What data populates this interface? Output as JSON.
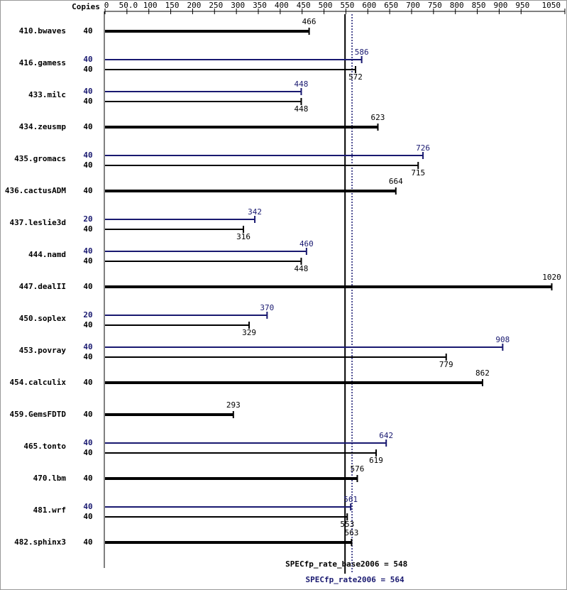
{
  "chart_data": {
    "type": "bar",
    "copies_header": "Copies",
    "categories": [
      "410.bwaves",
      "416.gamess",
      "433.milc",
      "434.zeusmp",
      "435.gromacs",
      "436.cactusADM",
      "437.leslie3d",
      "444.namd",
      "447.dealII",
      "450.soplex",
      "453.povray",
      "454.calculix",
      "459.GemsFDTD",
      "465.tonto",
      "470.lbm",
      "481.wrf",
      "482.sphinx3"
    ],
    "series": [
      {
        "color": "#000000",
        "copies": [
          40,
          40,
          40,
          40,
          40,
          40,
          40,
          40,
          40,
          40,
          40,
          40,
          40,
          40,
          40,
          40,
          40
        ],
        "values": [
          466,
          572,
          448,
          623,
          715,
          664,
          316,
          448,
          1020,
          329,
          779,
          862,
          293,
          619,
          576,
          553,
          563
        ]
      },
      {
        "color": "#191970",
        "copies": [
          null,
          40,
          40,
          null,
          40,
          null,
          20,
          40,
          null,
          20,
          40,
          null,
          null,
          40,
          null,
          40,
          null
        ],
        "values": [
          null,
          586,
          448,
          null,
          726,
          null,
          342,
          460,
          null,
          370,
          908,
          null,
          null,
          642,
          null,
          561,
          null
        ]
      }
    ],
    "xlim": [
      0,
      1050
    ],
    "xticks": [
      0,
      {
        "value": 50,
        "label": "50.0"
      },
      100,
      150,
      200,
      250,
      300,
      350,
      400,
      450,
      500,
      550,
      600,
      650,
      700,
      750,
      800,
      850,
      900,
      950,
      1050
    ],
    "reference_lines": [
      {
        "label": "SPECfp_rate_base2006 = 548",
        "value": 548,
        "color": "#000000",
        "style": "solid"
      },
      {
        "label": "SPECfp_rate2006 = 564",
        "value": 564,
        "color": "#191970",
        "style": "dotted"
      }
    ]
  }
}
